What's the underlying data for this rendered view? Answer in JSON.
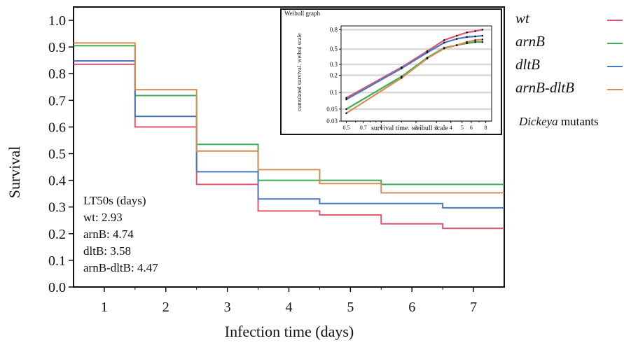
{
  "colors": {
    "wt": "#e0566f",
    "arnB": "#3dae57",
    "dltB": "#4a78c3",
    "arnB-dltB": "#d98c50",
    "axis": "#111111",
    "grid": "#d9d9d9"
  },
  "legend": {
    "items": [
      {
        "key": "wt",
        "label": "wt"
      },
      {
        "key": "arnB",
        "label": "arnB"
      },
      {
        "key": "dltB",
        "label": "dltB"
      },
      {
        "key": "arnB-dltB",
        "label": "arnB-dltB"
      }
    ],
    "title_italic": "Dickeya",
    "title_rest": " mutants"
  },
  "lt50": {
    "heading": "LT50s (days)",
    "rows": [
      {
        "key": "wt",
        "text": "wt: 2.93"
      },
      {
        "key": "arnB",
        "text": "arnB: 4.74"
      },
      {
        "key": "dltB",
        "text": "dltB: 3.58"
      },
      {
        "key": "arnB-dltB",
        "text": "arnB-dltB: 4.47"
      }
    ]
  },
  "chart_data": [
    {
      "type": "line",
      "subtype": "step",
      "title": "",
      "xlabel": "Infection time (days)",
      "ylabel": "Survival",
      "xlim": [
        0.5,
        7.5
      ],
      "ylim": [
        0,
        1.05
      ],
      "xticks": [
        1,
        2,
        3,
        4,
        5,
        6,
        7
      ],
      "yticks": [
        0.0,
        0.1,
        0.2,
        0.3,
        0.4,
        0.5,
        0.6,
        0.7,
        0.8,
        0.9,
        1.0
      ],
      "grid": false,
      "step_boundaries": [
        0.5,
        1.5,
        2.5,
        3.5,
        4.5,
        5.5,
        6.5,
        7.5
      ],
      "series": [
        {
          "name": "wt",
          "values": [
            0.835,
            0.6,
            0.385,
            0.285,
            0.27,
            0.237,
            0.22
          ]
        },
        {
          "name": "arnB",
          "values": [
            0.905,
            0.718,
            0.535,
            0.4,
            0.4,
            0.385,
            0.385
          ]
        },
        {
          "name": "dltB",
          "values": [
            0.848,
            0.64,
            0.432,
            0.33,
            0.313,
            0.313,
            0.297
          ]
        },
        {
          "name": "arnB-dltB",
          "values": [
            0.915,
            0.74,
            0.51,
            0.44,
            0.388,
            0.353,
            0.353
          ]
        }
      ]
    },
    {
      "type": "line",
      "title": "Weibull graph",
      "xlabel": "survival time. weibull scale",
      "ylabel": "cumulated survival. weibul scale",
      "xscale": "log",
      "yscale": "weibull",
      "xlim": [
        0.45,
        9
      ],
      "ylim": [
        0.03,
        0.85
      ],
      "xticks": [
        "0.5",
        "0.7",
        "1",
        "2",
        "3",
        "4",
        "5",
        "6",
        "8"
      ],
      "yticks": [
        "0.03",
        "0.05",
        "0.1",
        "0.2",
        "0.3",
        "0.5",
        "0.8"
      ],
      "grid": true,
      "series": [
        {
          "name": "wt",
          "x": [
            0.5,
            1.5,
            2.5,
            3.5,
            4.5,
            5.5,
            6.5,
            7.5
          ],
          "y": [
            0.08,
            0.27,
            0.47,
            0.64,
            0.71,
            0.76,
            0.78,
            0.8
          ]
        },
        {
          "name": "arnB",
          "x": [
            0.5,
            1.5,
            2.5,
            3.5,
            4.5,
            5.5,
            6.5,
            7.5
          ],
          "y": [
            0.05,
            0.19,
            0.38,
            0.52,
            0.56,
            0.59,
            0.61,
            0.61
          ]
        },
        {
          "name": "dltB",
          "x": [
            0.5,
            1.5,
            2.5,
            3.5,
            4.5,
            5.5,
            6.5,
            7.5
          ],
          "y": [
            0.075,
            0.26,
            0.45,
            0.6,
            0.66,
            0.69,
            0.7,
            0.71
          ]
        },
        {
          "name": "arnB-dltB",
          "x": [
            0.5,
            1.5,
            2.5,
            3.5,
            4.5,
            5.5,
            6.5,
            7.5
          ],
          "y": [
            0.042,
            0.18,
            0.37,
            0.51,
            0.56,
            0.61,
            0.64,
            0.65
          ]
        }
      ]
    }
  ]
}
